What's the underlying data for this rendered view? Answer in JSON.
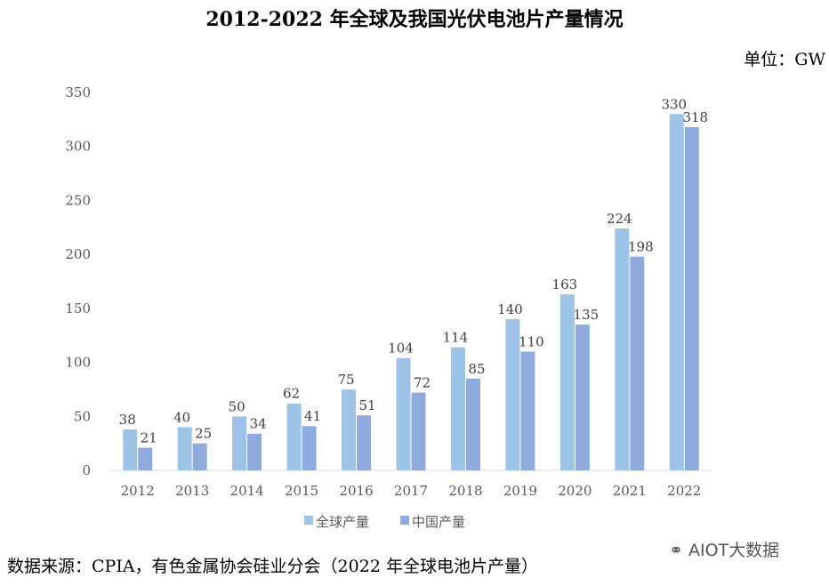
{
  "chart_data": {
    "type": "bar",
    "title": "2012-2022 年全球及我国光伏电池片产量情况",
    "unit": "单位：GW",
    "categories": [
      "2012",
      "2013",
      "2014",
      "2015",
      "2016",
      "2017",
      "2018",
      "2019",
      "2020",
      "2021",
      "2022"
    ],
    "series": [
      {
        "name": "全球产量",
        "color": "#9DC3E6",
        "values": [
          38,
          40,
          50,
          62,
          75,
          104,
          114,
          140,
          163,
          224,
          330
        ]
      },
      {
        "name": "中国产量",
        "color": "#8FAADC",
        "values": [
          21,
          25,
          34,
          41,
          51,
          72,
          85,
          110,
          135,
          198,
          318
        ]
      }
    ],
    "ylim": [
      0,
      350
    ],
    "yticks": [
      0,
      50,
      100,
      150,
      200,
      250,
      300,
      350
    ],
    "grid": false,
    "legend": "bottom",
    "source": "数据来源：CPIA，有色金属协会硅业分会（2022 年全球电池片产量）"
  },
  "watermark": "AIOT大数据"
}
